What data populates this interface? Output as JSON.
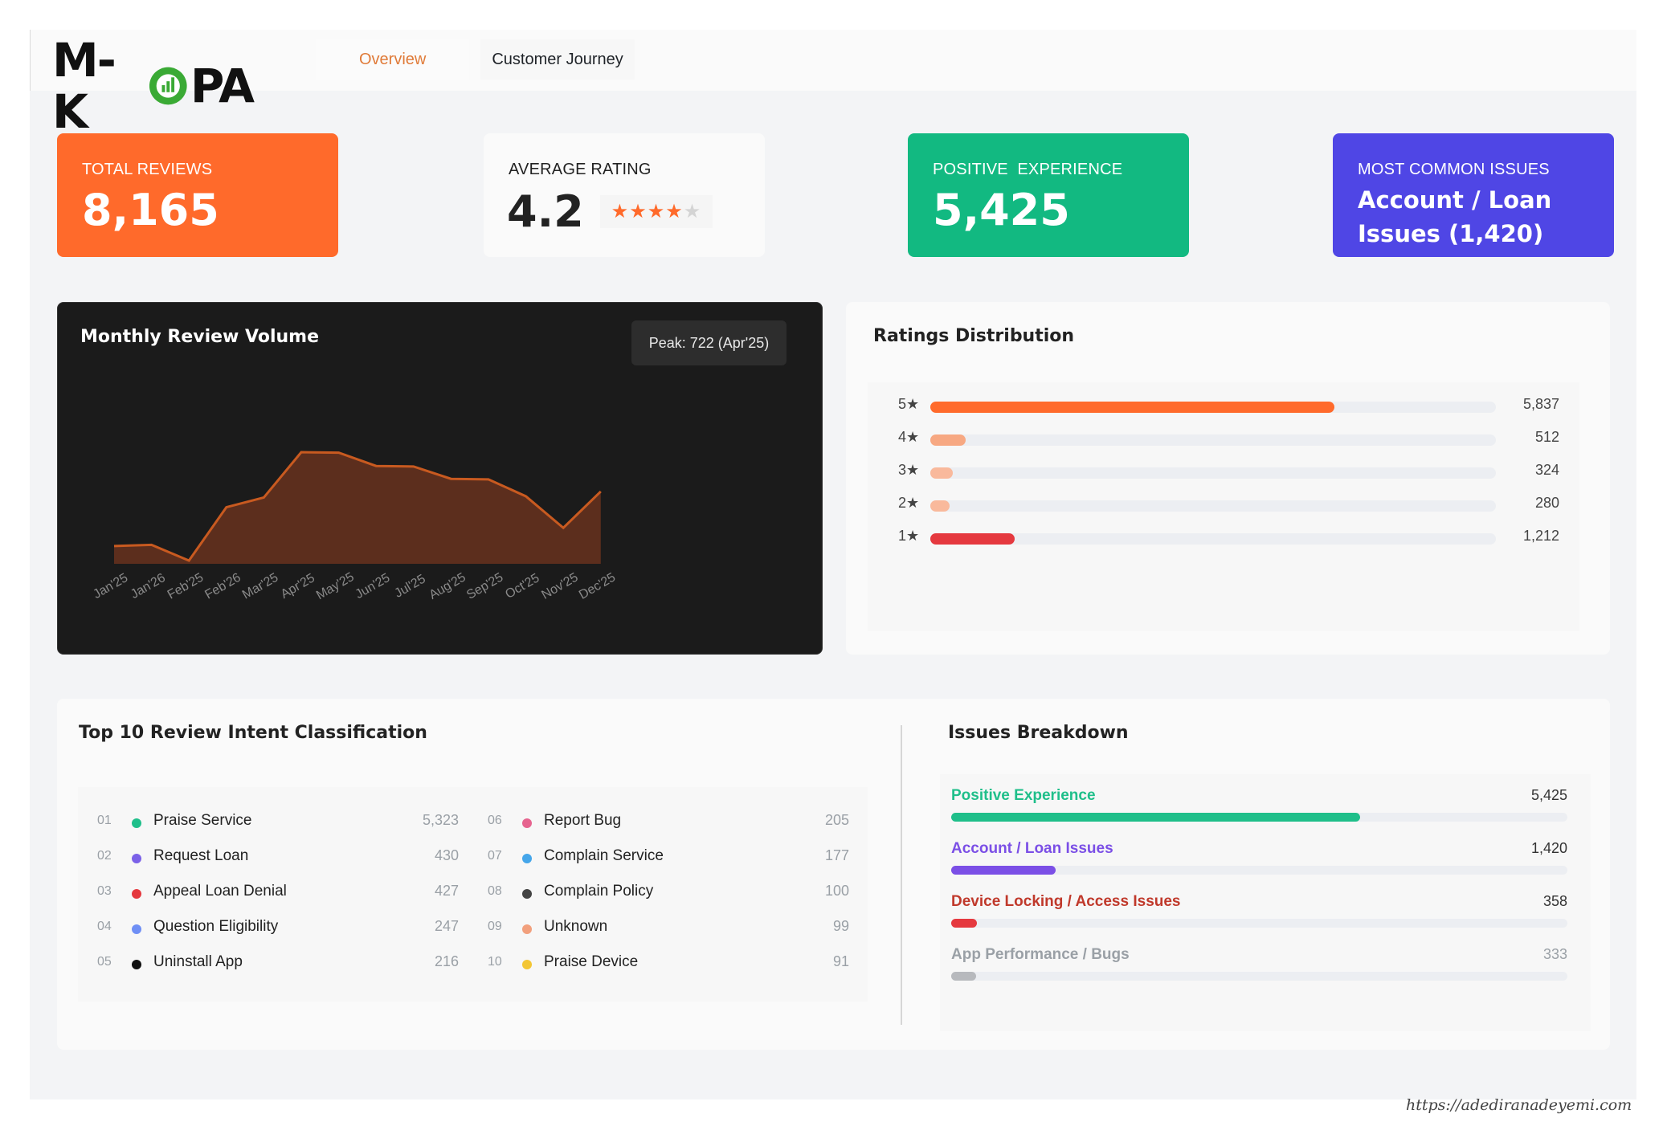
{
  "brand": {
    "name_left": "M-K",
    "name_right": "PA"
  },
  "tabs": [
    {
      "label": "Overview",
      "active": true
    },
    {
      "label": "Customer Journey",
      "active": false
    }
  ],
  "kpis": {
    "total_reviews": {
      "label": "TOTAL REVIEWS",
      "value": "8,165",
      "color": "#ff6a2b"
    },
    "average_rating": {
      "label": "AVERAGE RATING",
      "value": "4.2",
      "stars_filled": 4,
      "stars_total": 5
    },
    "positive_experience": {
      "label": "POSITIVE  EXPERIENCE",
      "value": "5,425",
      "color": "#12b981"
    },
    "most_common_issues": {
      "label": "MOST COMMON ISSUES",
      "value": "Account / Loan Issues (1,420)",
      "color": "#4f46e5"
    }
  },
  "monthly_volume": {
    "title": "Monthly Review Volume",
    "peak_label": "Peak: 722 (Apr'25)",
    "chart_data": {
      "type": "area",
      "categories": [
        "Jan'25",
        "Jan'26",
        "Feb'25",
        "Feb'26",
        "Mar'25",
        "Apr'25",
        "May'25",
        "Jun'25",
        "Jul'25",
        "Aug'25",
        "Sep'25",
        "Oct'25",
        "Nov'25",
        "Dec'25"
      ],
      "values": [
        335,
        340,
        275,
        495,
        535,
        722,
        720,
        665,
        663,
        612,
        610,
        540,
        410,
        560
      ],
      "ylim": [
        0,
        760
      ],
      "line_color": "#c85a20",
      "fill_color": "#5c2e1d"
    }
  },
  "ratings_distribution": {
    "title": "Ratings Distribution",
    "chart_data": {
      "type": "bar",
      "categories": [
        "5★",
        "4★",
        "3★",
        "2★",
        "1★"
      ],
      "values": [
        5837,
        512,
        324,
        280,
        1212
      ],
      "value_labels": [
        "5,837",
        "512",
        "324",
        "280",
        "1,212"
      ],
      "colors": [
        "#ff6a2b",
        "#f7a882",
        "#f9b99c",
        "#f9b99c",
        "#e5393f"
      ],
      "xlim": [
        0,
        8165
      ]
    }
  },
  "intents": {
    "title": "Top 10 Review Intent Classification",
    "items": [
      {
        "num": "01",
        "name": "Praise Service",
        "value": "5,323",
        "color": "#1fbf8a"
      },
      {
        "num": "02",
        "name": "Request Loan",
        "value": "430",
        "color": "#7b61e8"
      },
      {
        "num": "03",
        "name": "Appeal Loan Denial",
        "value": "427",
        "color": "#e5393f"
      },
      {
        "num": "04",
        "name": "Question Eligibility",
        "value": "247",
        "color": "#6f8ff5"
      },
      {
        "num": "05",
        "name": "Uninstall App",
        "value": "216",
        "color": "#111111"
      },
      {
        "num": "06",
        "name": "Report Bug",
        "value": "205",
        "color": "#e6648f"
      },
      {
        "num": "07",
        "name": "Complain Service",
        "value": "177",
        "color": "#45a6ea"
      },
      {
        "num": "08",
        "name": "Complain Policy",
        "value": "100",
        "color": "#444444"
      },
      {
        "num": "09",
        "name": "Unknown",
        "value": "99",
        "color": "#f2a07d"
      },
      {
        "num": "10",
        "name": "Praise Device",
        "value": "91",
        "color": "#f3c634"
      }
    ]
  },
  "issues": {
    "title": "Issues Breakdown",
    "items": [
      {
        "name": "Positive Experience",
        "value": "5,425",
        "fraction": 0.664,
        "color": "#1fbf8a"
      },
      {
        "name": "Account / Loan Issues",
        "value": "1,420",
        "fraction": 0.17,
        "color": "#7b4fe6"
      },
      {
        "name": "Device Locking / Access Issues",
        "value": "358",
        "fraction": 0.042,
        "color": "#e5393f"
      },
      {
        "name": "App Performance / Bugs",
        "value": "333",
        "fraction": 0.041,
        "color": "#b7b9bd"
      }
    ]
  },
  "footer": {
    "url": "https://adediranadeyemi.com"
  }
}
